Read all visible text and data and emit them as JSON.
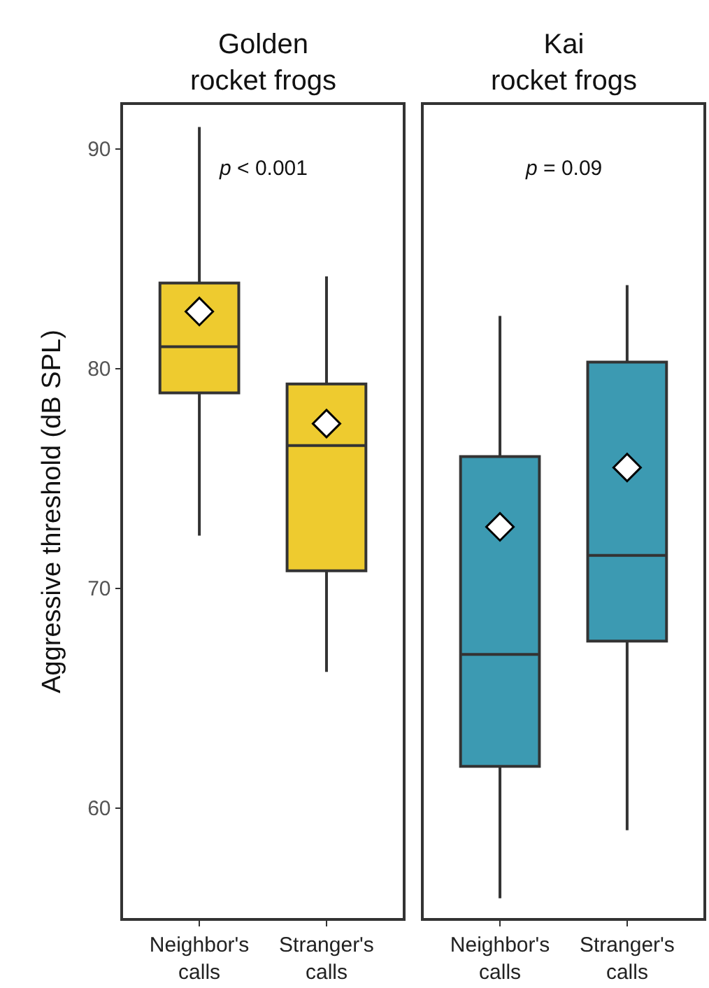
{
  "chart_data": [
    {
      "type": "box",
      "title": "Golden\nrocket frogs",
      "ylabel": "Aggressive threshold (dB SPL)",
      "categories": [
        "Neighbor's\ncalls",
        "Stranger's\ncalls"
      ],
      "colors": [
        "#eecb2f",
        "#eecb2f"
      ],
      "marker": "diamond",
      "boxes": [
        {
          "low": 72.4,
          "q1": 78.9,
          "median": 81.0,
          "q3": 83.9,
          "high": 91.0,
          "mean": 82.6
        },
        {
          "low": 66.2,
          "q1": 70.8,
          "median": 76.5,
          "q3": 79.3,
          "high": 84.2,
          "mean": 77.5
        }
      ],
      "ylim": [
        55,
        92
      ],
      "yticks": [
        60,
        70,
        80,
        90
      ],
      "annotations": [
        "p < 0.001"
      ]
    },
    {
      "type": "box",
      "title": "Kai\nrocket frogs",
      "categories": [
        "Neighbor's\ncalls",
        "Stranger's\ncalls"
      ],
      "colors": [
        "#3c9ab2",
        "#3c9ab2"
      ],
      "marker": "diamond",
      "boxes": [
        {
          "low": 55.9,
          "q1": 61.9,
          "median": 67.0,
          "q3": 76.0,
          "high": 82.4,
          "mean": 72.8
        },
        {
          "low": 59.0,
          "q1": 67.6,
          "median": 71.5,
          "q3": 80.3,
          "high": 83.8,
          "mean": 75.5
        }
      ],
      "ylim": [
        55,
        92
      ],
      "annotations": [
        "p = 0.09"
      ],
      "tick_labels": "x"
    }
  ]
}
